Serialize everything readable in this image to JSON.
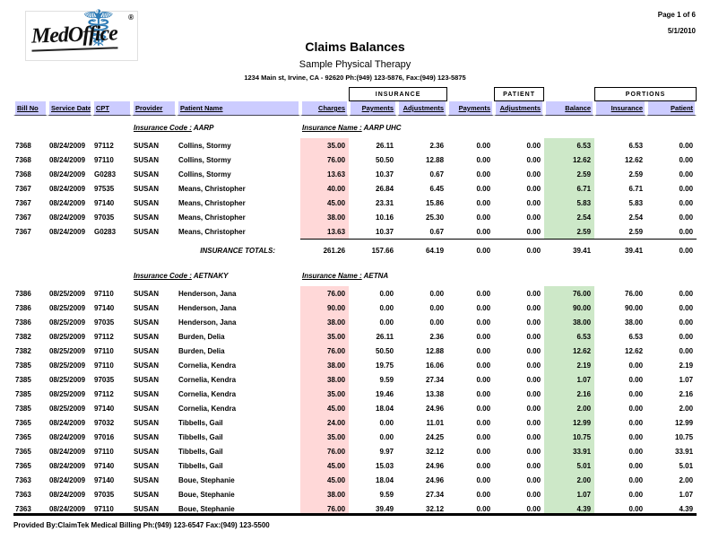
{
  "header": {
    "logo_text": "MedOffice",
    "logo_reg": "®",
    "page_label": "Page 1 of 6",
    "date": "5/1/2010",
    "title": "Claims Balances",
    "practice_name": "Sample Physical Therapy",
    "practice_address": "1234 Main st, Irvine, CA - 92620     Ph:(949) 123-5876, Fax:(949) 123-5875"
  },
  "table": {
    "group_insurance": "INSURANCE",
    "group_patient": "PATIENT",
    "group_portions": "PORTIONS",
    "columns": [
      "Bill No",
      "Service Date",
      "CPT",
      "Provider",
      "Patient Name",
      "Charges",
      "Payments",
      "Adjustments",
      "Payments",
      "Adjustments",
      "Balance",
      "Insurance",
      "Patient"
    ],
    "insurance_code_label": "Insurance Code :",
    "insurance_name_label": "Insurance Name :",
    "totals_label": "INSURANCE TOTALS:",
    "sections": [
      {
        "code": "AARP",
        "name": "AARP UHC",
        "rows": [
          [
            "7368",
            "08/24/2009",
            "97112",
            "SUSAN",
            "Collins, Stormy",
            "35.00",
            "26.11",
            "2.36",
            "0.00",
            "0.00",
            "6.53",
            "6.53",
            "0.00"
          ],
          [
            "7368",
            "08/24/2009",
            "97110",
            "SUSAN",
            "Collins, Stormy",
            "76.00",
            "50.50",
            "12.88",
            "0.00",
            "0.00",
            "12.62",
            "12.62",
            "0.00"
          ],
          [
            "7368",
            "08/24/2009",
            "G0283",
            "SUSAN",
            "Collins, Stormy",
            "13.63",
            "10.37",
            "0.67",
            "0.00",
            "0.00",
            "2.59",
            "2.59",
            "0.00"
          ],
          [
            "7367",
            "08/24/2009",
            "97535",
            "SUSAN",
            "Means, Christopher",
            "40.00",
            "26.84",
            "6.45",
            "0.00",
            "0.00",
            "6.71",
            "6.71",
            "0.00"
          ],
          [
            "7367",
            "08/24/2009",
            "97140",
            "SUSAN",
            "Means, Christopher",
            "45.00",
            "23.31",
            "15.86",
            "0.00",
            "0.00",
            "5.83",
            "5.83",
            "0.00"
          ],
          [
            "7367",
            "08/24/2009",
            "97035",
            "SUSAN",
            "Means, Christopher",
            "38.00",
            "10.16",
            "25.30",
            "0.00",
            "0.00",
            "2.54",
            "2.54",
            "0.00"
          ],
          [
            "7367",
            "08/24/2009",
            "G0283",
            "SUSAN",
            "Means, Christopher",
            "13.63",
            "10.37",
            "0.67",
            "0.00",
            "0.00",
            "2.59",
            "2.59",
            "0.00"
          ]
        ],
        "totals": [
          "261.26",
          "157.66",
          "64.19",
          "0.00",
          "0.00",
          "39.41",
          "39.41",
          "0.00"
        ]
      },
      {
        "code": "AETNAKY",
        "name": "AETNA",
        "rows": [
          [
            "7386",
            "08/25/2009",
            "97110",
            "SUSAN",
            "Henderson, Jana",
            "76.00",
            "0.00",
            "0.00",
            "0.00",
            "0.00",
            "76.00",
            "76.00",
            "0.00"
          ],
          [
            "7386",
            "08/25/2009",
            "97140",
            "SUSAN",
            "Henderson, Jana",
            "90.00",
            "0.00",
            "0.00",
            "0.00",
            "0.00",
            "90.00",
            "90.00",
            "0.00"
          ],
          [
            "7386",
            "08/25/2009",
            "97035",
            "SUSAN",
            "Henderson, Jana",
            "38.00",
            "0.00",
            "0.00",
            "0.00",
            "0.00",
            "38.00",
            "38.00",
            "0.00"
          ],
          [
            "7382",
            "08/25/2009",
            "97112",
            "SUSAN",
            "Burden, Delia",
            "35.00",
            "26.11",
            "2.36",
            "0.00",
            "0.00",
            "6.53",
            "6.53",
            "0.00"
          ],
          [
            "7382",
            "08/25/2009",
            "97110",
            "SUSAN",
            "Burden, Delia",
            "76.00",
            "50.50",
            "12.88",
            "0.00",
            "0.00",
            "12.62",
            "12.62",
            "0.00"
          ],
          [
            "7385",
            "08/25/2009",
            "97110",
            "SUSAN",
            "Cornelia, Kendra",
            "38.00",
            "19.75",
            "16.06",
            "0.00",
            "0.00",
            "2.19",
            "0.00",
            "2.19"
          ],
          [
            "7385",
            "08/25/2009",
            "97035",
            "SUSAN",
            "Cornelia, Kendra",
            "38.00",
            "9.59",
            "27.34",
            "0.00",
            "0.00",
            "1.07",
            "0.00",
            "1.07"
          ],
          [
            "7385",
            "08/25/2009",
            "97112",
            "SUSAN",
            "Cornelia, Kendra",
            "35.00",
            "19.46",
            "13.38",
            "0.00",
            "0.00",
            "2.16",
            "0.00",
            "2.16"
          ],
          [
            "7385",
            "08/25/2009",
            "97140",
            "SUSAN",
            "Cornelia, Kendra",
            "45.00",
            "18.04",
            "24.96",
            "0.00",
            "0.00",
            "2.00",
            "0.00",
            "2.00"
          ],
          [
            "7365",
            "08/24/2009",
            "97032",
            "SUSAN",
            "Tibbells, Gail",
            "24.00",
            "0.00",
            "11.01",
            "0.00",
            "0.00",
            "12.99",
            "0.00",
            "12.99"
          ],
          [
            "7365",
            "08/24/2009",
            "97016",
            "SUSAN",
            "Tibbells, Gail",
            "35.00",
            "0.00",
            "24.25",
            "0.00",
            "0.00",
            "10.75",
            "0.00",
            "10.75"
          ],
          [
            "7365",
            "08/24/2009",
            "97110",
            "SUSAN",
            "Tibbells, Gail",
            "76.00",
            "9.97",
            "32.12",
            "0.00",
            "0.00",
            "33.91",
            "0.00",
            "33.91"
          ],
          [
            "7365",
            "08/24/2009",
            "97140",
            "SUSAN",
            "Tibbells, Gail",
            "45.00",
            "15.03",
            "24.96",
            "0.00",
            "0.00",
            "5.01",
            "0.00",
            "5.01"
          ],
          [
            "7363",
            "08/24/2009",
            "97140",
            "SUSAN",
            "Boue, Stephanie",
            "45.00",
            "18.04",
            "24.96",
            "0.00",
            "0.00",
            "2.00",
            "0.00",
            "2.00"
          ],
          [
            "7363",
            "08/24/2009",
            "97035",
            "SUSAN",
            "Boue, Stephanie",
            "38.00",
            "9.59",
            "27.34",
            "0.00",
            "0.00",
            "1.07",
            "0.00",
            "1.07"
          ],
          [
            "7363",
            "08/24/2009",
            "97110",
            "SUSAN",
            "Boue, Stephanie",
            "76.00",
            "39.49",
            "32.12",
            "0.00",
            "0.00",
            "4.39",
            "0.00",
            "4.39"
          ]
        ],
        "totals": null
      }
    ]
  },
  "footer": {
    "text": "Provided By:ClaimTek Medical Billing     Ph:(949) 123-6547     Fax:(949) 123-5500"
  },
  "icons": {
    "caduceus": "☤"
  },
  "colors": {
    "header_bg": "#ccccff",
    "charges_bg": "#ffd8d8",
    "balance_bg": "#cde8c8",
    "logo_blue": "#2e7bb5"
  }
}
